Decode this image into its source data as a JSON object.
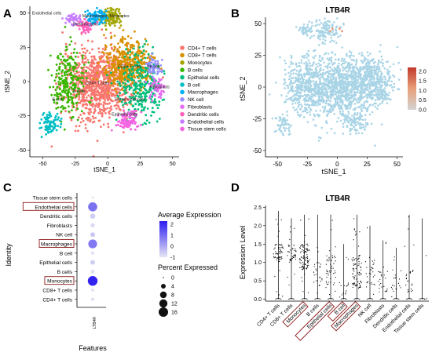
{
  "panels": {
    "A": {
      "letter": "A",
      "xlabel": "tSNE_1",
      "ylabel": "tSNE_2",
      "xticks": [
        "-50",
        "-25",
        "0",
        "25",
        "50"
      ],
      "yticks": [
        "50",
        "25",
        "0",
        "-25",
        "-50"
      ],
      "legend": [
        {
          "label": "CD4+ T cells",
          "color": "#f8766d"
        },
        {
          "label": "CD8+ T cells",
          "color": "#d89000"
        },
        {
          "label": "Monocytes",
          "color": "#a3a500"
        },
        {
          "label": "B cells",
          "color": "#39b600"
        },
        {
          "label": "Epithelial cells",
          "color": "#00bf7d"
        },
        {
          "label": "B cell",
          "color": "#00bfc4"
        },
        {
          "label": "Macrophages",
          "color": "#00b0f6"
        },
        {
          "label": "NK cell",
          "color": "#9590ff"
        },
        {
          "label": "Fibroblasts",
          "color": "#e76bf3"
        },
        {
          "label": "Dendritic cells",
          "color": "#ff62bc"
        },
        {
          "label": "Endothelial cells",
          "color": "#c77cff"
        },
        {
          "label": "Tissue stem cells",
          "color": "#f564e3"
        }
      ],
      "cluster_labels": [
        "Endothelial cells",
        "Macrophages",
        "Monocytes",
        "Dendritic cells",
        "CD8+ T cells",
        "CD4+ T cells",
        "NK cell",
        "B cells",
        "Fibroblasts",
        "Epithelial cells",
        "Tissue stem cells",
        "B cell"
      ]
    },
    "B": {
      "letter": "B",
      "title": "LTB4R",
      "xlabel": "tSNE_1",
      "ylabel": "tSNE_2",
      "xticks": [
        "-50",
        "-25",
        "0",
        "25",
        "50"
      ],
      "yticks": [
        "50",
        "25",
        "0",
        "-25",
        "-50"
      ],
      "colorbar_ticks": [
        "2.0",
        "1.5",
        "1.0",
        "0.5",
        "0.0"
      ],
      "colorbar_colors": {
        "low": "#d3d3d3",
        "high": "#c0392b",
        "point": "#a8d4e6"
      }
    },
    "C": {
      "letter": "C",
      "xlabel": "Features",
      "ylabel": "Identity",
      "feature": "LTB4R",
      "avg_expr_title": "Average Expression",
      "avg_expr_ticks": [
        "2",
        "1",
        "0",
        "-1"
      ],
      "pct_title": "Percent Expressed",
      "pct_ticks": [
        "0",
        "4",
        "8",
        "12",
        "16"
      ]
    },
    "D": {
      "letter": "D",
      "title": "LTB4R",
      "ylabel": "Expression Level",
      "yticks": [
        "0.0",
        "0.5",
        "1.0",
        "1.5",
        "2.0",
        "2.5"
      ]
    }
  },
  "chart_data": [
    {
      "type": "scatter",
      "title": "",
      "xlabel": "tSNE_1",
      "ylabel": "tSNE_2",
      "xlim": [
        -60,
        55
      ],
      "ylim": [
        -55,
        55
      ],
      "series": [
        {
          "name": "CD4+ T cells",
          "centroid": [
            -8,
            -2
          ]
        },
        {
          "name": "CD8+ T cells",
          "centroid": [
            15,
            12
          ]
        },
        {
          "name": "Monocytes",
          "centroid": [
            3,
            47
          ]
        },
        {
          "name": "B cells",
          "centroid": [
            -30,
            0
          ]
        },
        {
          "name": "Epithelial cells",
          "centroid": [
            25,
            -5
          ]
        },
        {
          "name": "B cell",
          "centroid": [
            -45,
            -30
          ]
        },
        {
          "name": "Macrophages",
          "centroid": [
            -10,
            47
          ]
        },
        {
          "name": "NK cell",
          "centroid": [
            35,
            10
          ]
        },
        {
          "name": "Fibroblasts",
          "centroid": [
            38,
            -5
          ]
        },
        {
          "name": "Dendritic cells",
          "centroid": [
            -17,
            40
          ]
        },
        {
          "name": "Endothelial cells",
          "centroid": [
            -27,
            45
          ]
        },
        {
          "name": "Tissue stem cells",
          "centroid": [
            15,
            -28
          ]
        }
      ]
    },
    {
      "type": "scatter",
      "title": "LTB4R",
      "xlabel": "tSNE_1",
      "ylabel": "tSNE_2",
      "xlim": [
        -60,
        55
      ],
      "ylim": [
        -55,
        55
      ],
      "color_range": [
        0,
        2.2
      ]
    },
    {
      "type": "scatter",
      "subtype": "dotplot",
      "xlabel": "Features",
      "ylabel": "Identity",
      "categories": [
        "Tissue stem cells",
        "Endothelial cells",
        "Dendritic cells",
        "Fibroblasts",
        "NK cell",
        "Macrophages",
        "B cell",
        "Epithelial cells",
        "B cells",
        "Monocytes",
        "CD8+ T cells",
        "CD4+ T cells"
      ],
      "highlighted": [
        "Endothelial cells",
        "Macrophages",
        "Monocytes"
      ],
      "feature": "LTB4R",
      "avg_expression": [
        -1.0,
        0.9,
        -0.6,
        -0.8,
        -0.5,
        0.8,
        -0.9,
        -0.6,
        -0.9,
        2.2,
        -1.0,
        -0.9
      ],
      "pct_expressed": [
        1,
        15,
        5,
        3,
        4,
        14,
        2,
        4,
        3,
        17,
        2,
        2
      ],
      "color_lim": [
        -1,
        2.3
      ],
      "pct_lim": [
        0,
        16
      ]
    },
    {
      "type": "scatter",
      "subtype": "violin",
      "title": "LTB4R",
      "ylabel": "Expression Level",
      "ylim": [
        -0.05,
        2.55
      ],
      "categories": [
        "CD4+ T cells",
        "CD8+ T cells",
        "Monocytes",
        "B cells",
        "Epithelial cells",
        "B cell",
        "Macrophages",
        "NK cell",
        "Fibroblasts",
        "Dendritic cells",
        "Endothelial cells",
        "Tissue stem cells"
      ],
      "highlighted": [
        "Monocytes",
        "Epithelial cells",
        "B cell",
        "Macrophages"
      ],
      "max_values": [
        2.4,
        2.2,
        2.3,
        2.3,
        2.3,
        1.5,
        2.3,
        2.0,
        1.6,
        1.4,
        2.3,
        2.2
      ],
      "dense_range": [
        [
          1.0,
          1.5
        ],
        [
          1.0,
          1.5
        ],
        [
          0.8,
          1.5
        ],
        [
          0.3,
          1.2
        ],
        [
          0.3,
          1.2
        ],
        [
          0.0,
          0.6
        ],
        [
          0.3,
          1.2
        ],
        [
          0.3,
          1.2
        ],
        [
          0.2,
          0.8
        ],
        [
          0.2,
          0.8
        ],
        [
          0.2,
          0.8
        ],
        [
          0.0,
          0.05
        ]
      ],
      "n_points": [
        60,
        45,
        90,
        25,
        50,
        15,
        80,
        30,
        25,
        20,
        25,
        3
      ]
    }
  ]
}
